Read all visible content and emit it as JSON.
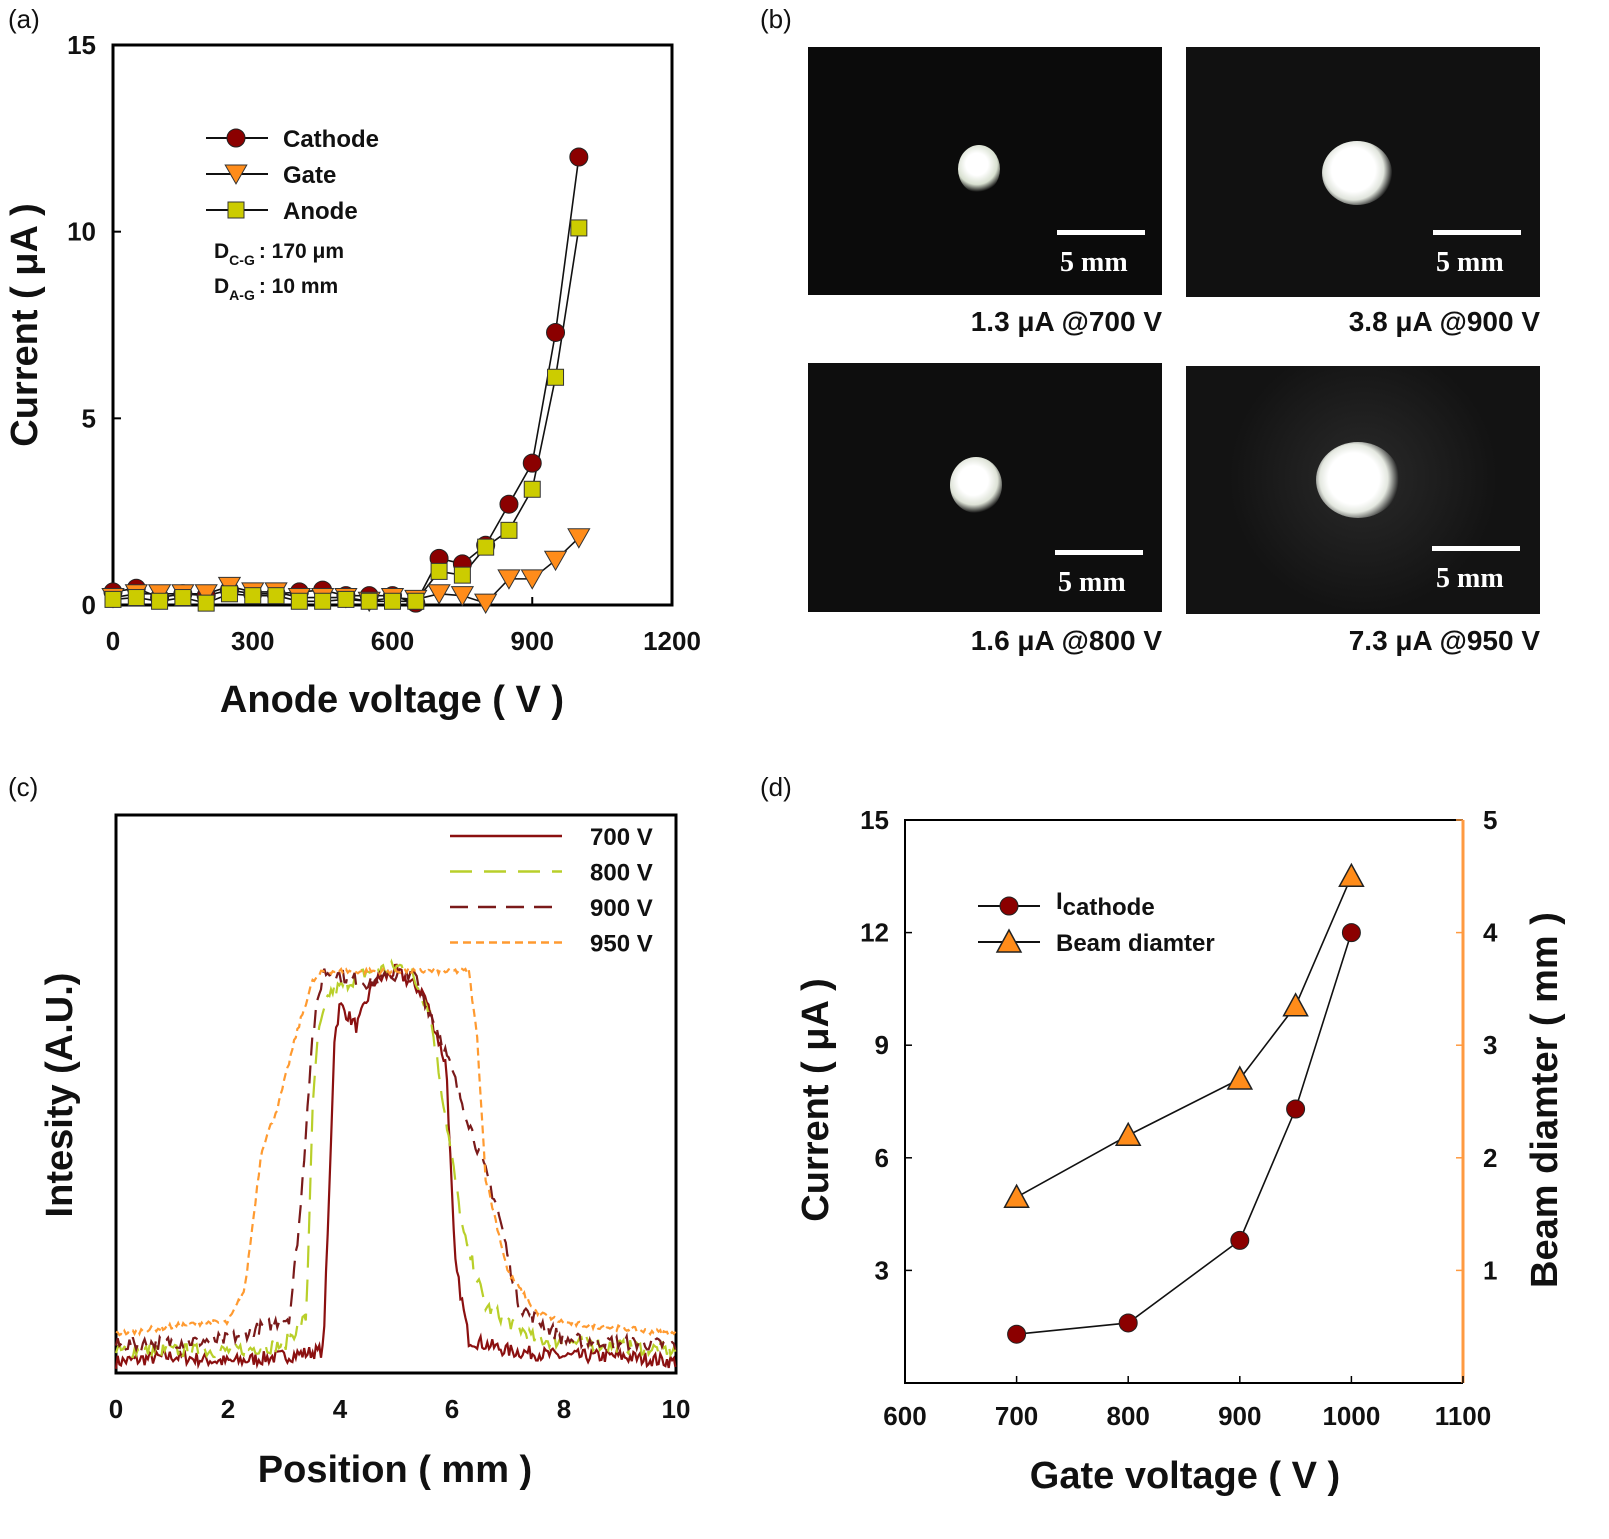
{
  "panel_labels": [
    "(a)",
    "(b)",
    "(c)",
    "(d)"
  ],
  "colors": {
    "cathode": "#8b0000",
    "gate": "#ff8c1a",
    "anode": "#cccc00",
    "c700": "#8b1010",
    "c800": "#b9cf2a",
    "c900": "#7a1a1a",
    "c950": "#ff9a30",
    "right_axis": "#ff9a40"
  },
  "images": [
    {
      "caption": "1.3 μA @700 V",
      "scale": "5 mm"
    },
    {
      "caption": "3.8 μA @900 V",
      "scale": "5 mm"
    },
    {
      "caption": "1.6 μA @800 V",
      "scale": "5 mm"
    },
    {
      "caption": "7.3 μA @950 V",
      "scale": "5 mm"
    }
  ],
  "chart_data": [
    {
      "panel": "(a)",
      "type": "line",
      "xlabel": "Anode voltage ( V )",
      "ylabel": "Current ( μA )",
      "xlim": [
        0,
        1200
      ],
      "ylim": [
        0,
        15
      ],
      "xticks": [
        0,
        300,
        600,
        900,
        1200
      ],
      "yticks": [
        0,
        5,
        10,
        15
      ],
      "x": [
        0,
        50,
        100,
        150,
        200,
        250,
        300,
        350,
        400,
        450,
        500,
        550,
        600,
        650,
        700,
        750,
        800,
        850,
        900,
        950,
        1000
      ],
      "series": [
        {
          "name": "Cathode",
          "marker": "circle",
          "values": [
            0.35,
            0.45,
            0.2,
            0.3,
            0.25,
            0.4,
            0.3,
            0.3,
            0.35,
            0.4,
            0.25,
            0.25,
            0.25,
            0.05,
            1.25,
            1.1,
            1.6,
            2.7,
            3.8,
            7.3,
            12.0
          ]
        },
        {
          "name": "Gate",
          "marker": "triangle-down",
          "values": [
            0.2,
            0.3,
            0.3,
            0.3,
            0.3,
            0.5,
            0.35,
            0.35,
            0.2,
            0.2,
            0.2,
            0.1,
            0.2,
            0.15,
            0.3,
            0.25,
            0.05,
            0.7,
            0.7,
            1.2,
            1.8
          ]
        },
        {
          "name": "Anode",
          "marker": "square",
          "values": [
            0.15,
            0.2,
            0.1,
            0.2,
            0.05,
            0.3,
            0.25,
            0.25,
            0.1,
            0.1,
            0.15,
            0.1,
            0.1,
            0.1,
            0.9,
            0.8,
            1.55,
            2.0,
            3.1,
            6.1,
            10.1
          ]
        }
      ],
      "annotations": [
        {
          "main": "D",
          "sub": "C-G",
          "text": ": 170 μm"
        },
        {
          "main": "D",
          "sub": "A-G",
          "text": ": 10 mm"
        }
      ],
      "legend": "top-left"
    },
    {
      "panel": "(c)",
      "type": "line",
      "xlabel": "Position ( mm )",
      "ylabel": "Intesity (A.U.)",
      "xlim": [
        0,
        10
      ],
      "ylim": [
        0,
        1
      ],
      "xticks": [
        0,
        2,
        4,
        6,
        8,
        10
      ],
      "yticks": [],
      "series": [
        {
          "name": "700 V",
          "style": "solid",
          "points": [
            [
              0,
              0.02
            ],
            [
              1,
              0.03
            ],
            [
              2,
              0.02
            ],
            [
              3,
              0.03
            ],
            [
              3.7,
              0.04
            ],
            [
              3.8,
              0.3
            ],
            [
              3.9,
              0.6
            ],
            [
              4.0,
              0.66
            ],
            [
              4.3,
              0.62
            ],
            [
              4.6,
              0.7
            ],
            [
              5.0,
              0.72
            ],
            [
              5.5,
              0.68
            ],
            [
              5.9,
              0.55
            ],
            [
              6.05,
              0.2
            ],
            [
              6.3,
              0.06
            ],
            [
              7,
              0.04
            ],
            [
              8,
              0.03
            ],
            [
              9,
              0.03
            ],
            [
              10,
              0.02
            ]
          ]
        },
        {
          "name": "800 V",
          "style": "dashed",
          "points": [
            [
              0,
              0.04
            ],
            [
              2,
              0.04
            ],
            [
              3,
              0.05
            ],
            [
              3.4,
              0.1
            ],
            [
              3.5,
              0.45
            ],
            [
              3.6,
              0.6
            ],
            [
              3.8,
              0.68
            ],
            [
              4.5,
              0.72
            ],
            [
              5.2,
              0.73
            ],
            [
              5.6,
              0.65
            ],
            [
              5.9,
              0.45
            ],
            [
              6.2,
              0.25
            ],
            [
              6.6,
              0.12
            ],
            [
              7.5,
              0.06
            ],
            [
              10,
              0.04
            ]
          ]
        },
        {
          "name": "900 V",
          "style": "dashed",
          "points": [
            [
              0,
              0.05
            ],
            [
              2,
              0.06
            ],
            [
              3.1,
              0.1
            ],
            [
              3.3,
              0.3
            ],
            [
              3.5,
              0.6
            ],
            [
              3.7,
              0.72
            ],
            [
              4.5,
              0.7
            ],
            [
              5.3,
              0.72
            ],
            [
              5.8,
              0.6
            ],
            [
              6.3,
              0.45
            ],
            [
              6.8,
              0.3
            ],
            [
              7.2,
              0.12
            ],
            [
              8,
              0.06
            ],
            [
              10,
              0.05
            ]
          ]
        },
        {
          "name": "950 V",
          "style": "short-dashed",
          "points": [
            [
              0,
              0.07
            ],
            [
              1.5,
              0.09
            ],
            [
              2,
              0.09
            ],
            [
              2.3,
              0.15
            ],
            [
              2.6,
              0.4
            ],
            [
              2.9,
              0.48
            ],
            [
              3.2,
              0.6
            ],
            [
              3.5,
              0.7
            ],
            [
              3.7,
              0.72
            ],
            [
              6.3,
              0.72
            ],
            [
              6.45,
              0.6
            ],
            [
              6.6,
              0.35
            ],
            [
              7,
              0.18
            ],
            [
              7.5,
              0.11
            ],
            [
              8,
              0.09
            ],
            [
              10,
              0.07
            ]
          ]
        }
      ],
      "legend": "top-right"
    },
    {
      "panel": "(d)",
      "type": "line",
      "xlabel": "Gate voltage ( V )",
      "ylabel": "Current ( μA )",
      "ylabel_right": "Beam diamter ( mm )",
      "xlim": [
        600,
        1100
      ],
      "ylim": [
        0,
        15
      ],
      "ylim_right": [
        0,
        5
      ],
      "xticks": [
        600,
        700,
        800,
        900,
        1000,
        1100
      ],
      "yticks": [
        3,
        6,
        9,
        12,
        15
      ],
      "yticks_right": [
        1,
        2,
        3,
        4,
        5
      ],
      "x": [
        700,
        800,
        900,
        950,
        1000
      ],
      "series": [
        {
          "name": "I",
          "sub": "cathode",
          "axis": "left",
          "marker": "circle",
          "values": [
            1.3,
            1.6,
            3.8,
            7.3,
            12.0
          ]
        },
        {
          "name": "Beam diamter",
          "axis": "right",
          "marker": "triangle-up",
          "values": [
            1.65,
            2.2,
            2.7,
            3.35,
            4.5
          ]
        }
      ],
      "legend": "top-left"
    }
  ]
}
